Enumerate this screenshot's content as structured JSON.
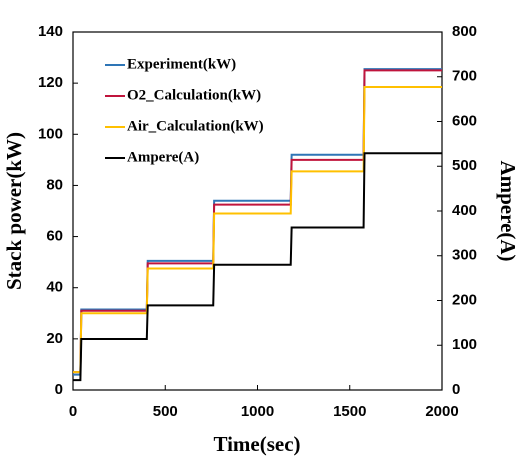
{
  "chart_data": {
    "type": "line",
    "x_label": "Time(sec)",
    "y_label": "Stack power(kW)",
    "y2_label": "Ampere(A)",
    "x": [
      0,
      40,
      45,
      400,
      405,
      760,
      765,
      1180,
      1185,
      1575,
      1580,
      2000
    ],
    "series": [
      {
        "name": "Experiment(kW)",
        "color": "#2e75b6",
        "values": [
          6,
          6,
          31.5,
          31.5,
          50.5,
          50.5,
          74,
          74,
          92,
          92,
          125.5,
          125.5
        ]
      },
      {
        "name": "O2_Calculation(kW)",
        "color": "#c0143c",
        "values": [
          7,
          7,
          31,
          31,
          49.5,
          49.5,
          72.5,
          72.5,
          90,
          90,
          125,
          125
        ]
      },
      {
        "name": "Air_Calculation(kW)",
        "color": "#ffc000",
        "values": [
          7,
          7,
          30,
          30,
          47.5,
          47.5,
          69,
          69,
          85.5,
          85.5,
          118.5,
          118.5
        ]
      },
      {
        "name": "Ampere(A)",
        "color": "#000000",
        "axis": "y2",
        "values": [
          22,
          22,
          114,
          114,
          189,
          189,
          280,
          280,
          363,
          363,
          529,
          529
        ]
      }
    ],
    "xlim": [
      0,
      2000
    ],
    "xticks": [
      0,
      500,
      1000,
      1500,
      2000
    ],
    "ylim": [
      0,
      140
    ],
    "yticks": [
      0,
      20,
      40,
      60,
      80,
      100,
      120,
      140
    ],
    "y2lim": [
      0,
      800
    ],
    "y2ticks": [
      0,
      100,
      200,
      300,
      400,
      500,
      600,
      700,
      800
    ],
    "grid": false,
    "legend": "upper left"
  }
}
